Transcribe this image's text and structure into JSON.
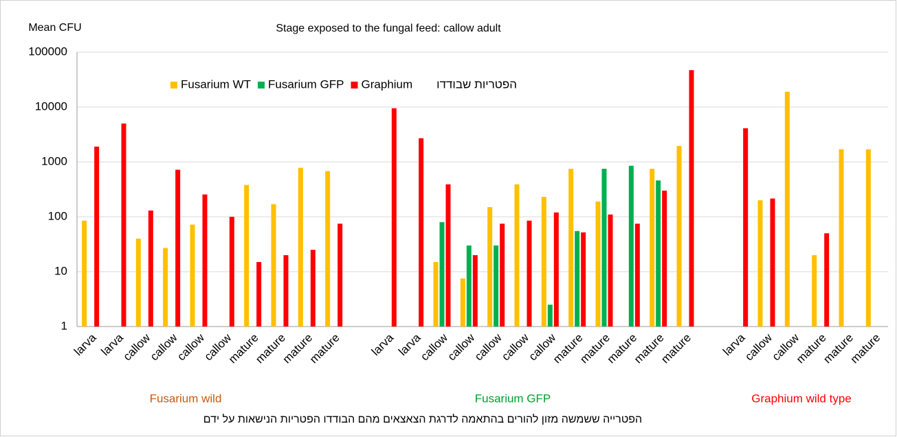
{
  "chart_data": {
    "type": "bar",
    "title": "Stage exposed to the fungal feed:  callow adult",
    "y_label": "Mean CFU",
    "x_label": "הפטרייה ששמשה מזון להורים בהתאמה לדרגת הצאצאים מהם הבודדו הפטריות הנישאות על ידם",
    "legend_title": "הפטריות שבודדו",
    "log_scale": true,
    "grid": true,
    "ylim": [
      1,
      100000
    ],
    "yticks": [
      1,
      10,
      100,
      1000,
      10000,
      100000
    ],
    "categories": [
      "larva",
      "larva",
      "callow",
      "callow",
      "callow",
      "callow",
      "mature",
      "mature",
      "mature",
      "mature",
      null,
      "larva",
      "larva",
      "callow",
      "callow",
      "callow",
      "callow",
      "callow",
      "mature",
      "mature",
      "mature",
      "mature",
      "mature",
      null,
      "larva",
      "callow",
      "callow",
      "mature",
      "mature",
      "mature"
    ],
    "series": [
      {
        "name": "Fusarium  WT",
        "color": "#ffc000",
        "values": [
          85,
          null,
          40,
          27,
          72,
          null,
          380,
          170,
          780,
          680,
          null,
          null,
          null,
          15,
          7.5,
          150,
          390,
          230,
          750,
          190,
          null,
          750,
          1950,
          null,
          null,
          200,
          19000,
          20,
          1700,
          1700
        ]
      },
      {
        "name": "Fusarium GFP",
        "color": "#00b050",
        "values": [
          null,
          null,
          null,
          null,
          null,
          null,
          null,
          null,
          null,
          null,
          null,
          null,
          null,
          80,
          30,
          30,
          null,
          2.5,
          55,
          750,
          850,
          460,
          null,
          null,
          null,
          null,
          null,
          null,
          null,
          null
        ]
      },
      {
        "name": "Graphium",
        "color": "#ff0000",
        "values": [
          1900,
          5000,
          130,
          720,
          255,
          100,
          15,
          20,
          25,
          75,
          null,
          9500,
          2700,
          390,
          20,
          75,
          85,
          120,
          52,
          110,
          75,
          300,
          47000,
          null,
          4100,
          215,
          null,
          50,
          null,
          null
        ]
      }
    ],
    "group_labels": [
      {
        "text": "Fusarium wild",
        "color": "#c55a11"
      },
      {
        "text": "Fusarium GFP",
        "color": "#00a030"
      },
      {
        "text": "Graphium wild type",
        "color": "#ff0000"
      }
    ]
  }
}
